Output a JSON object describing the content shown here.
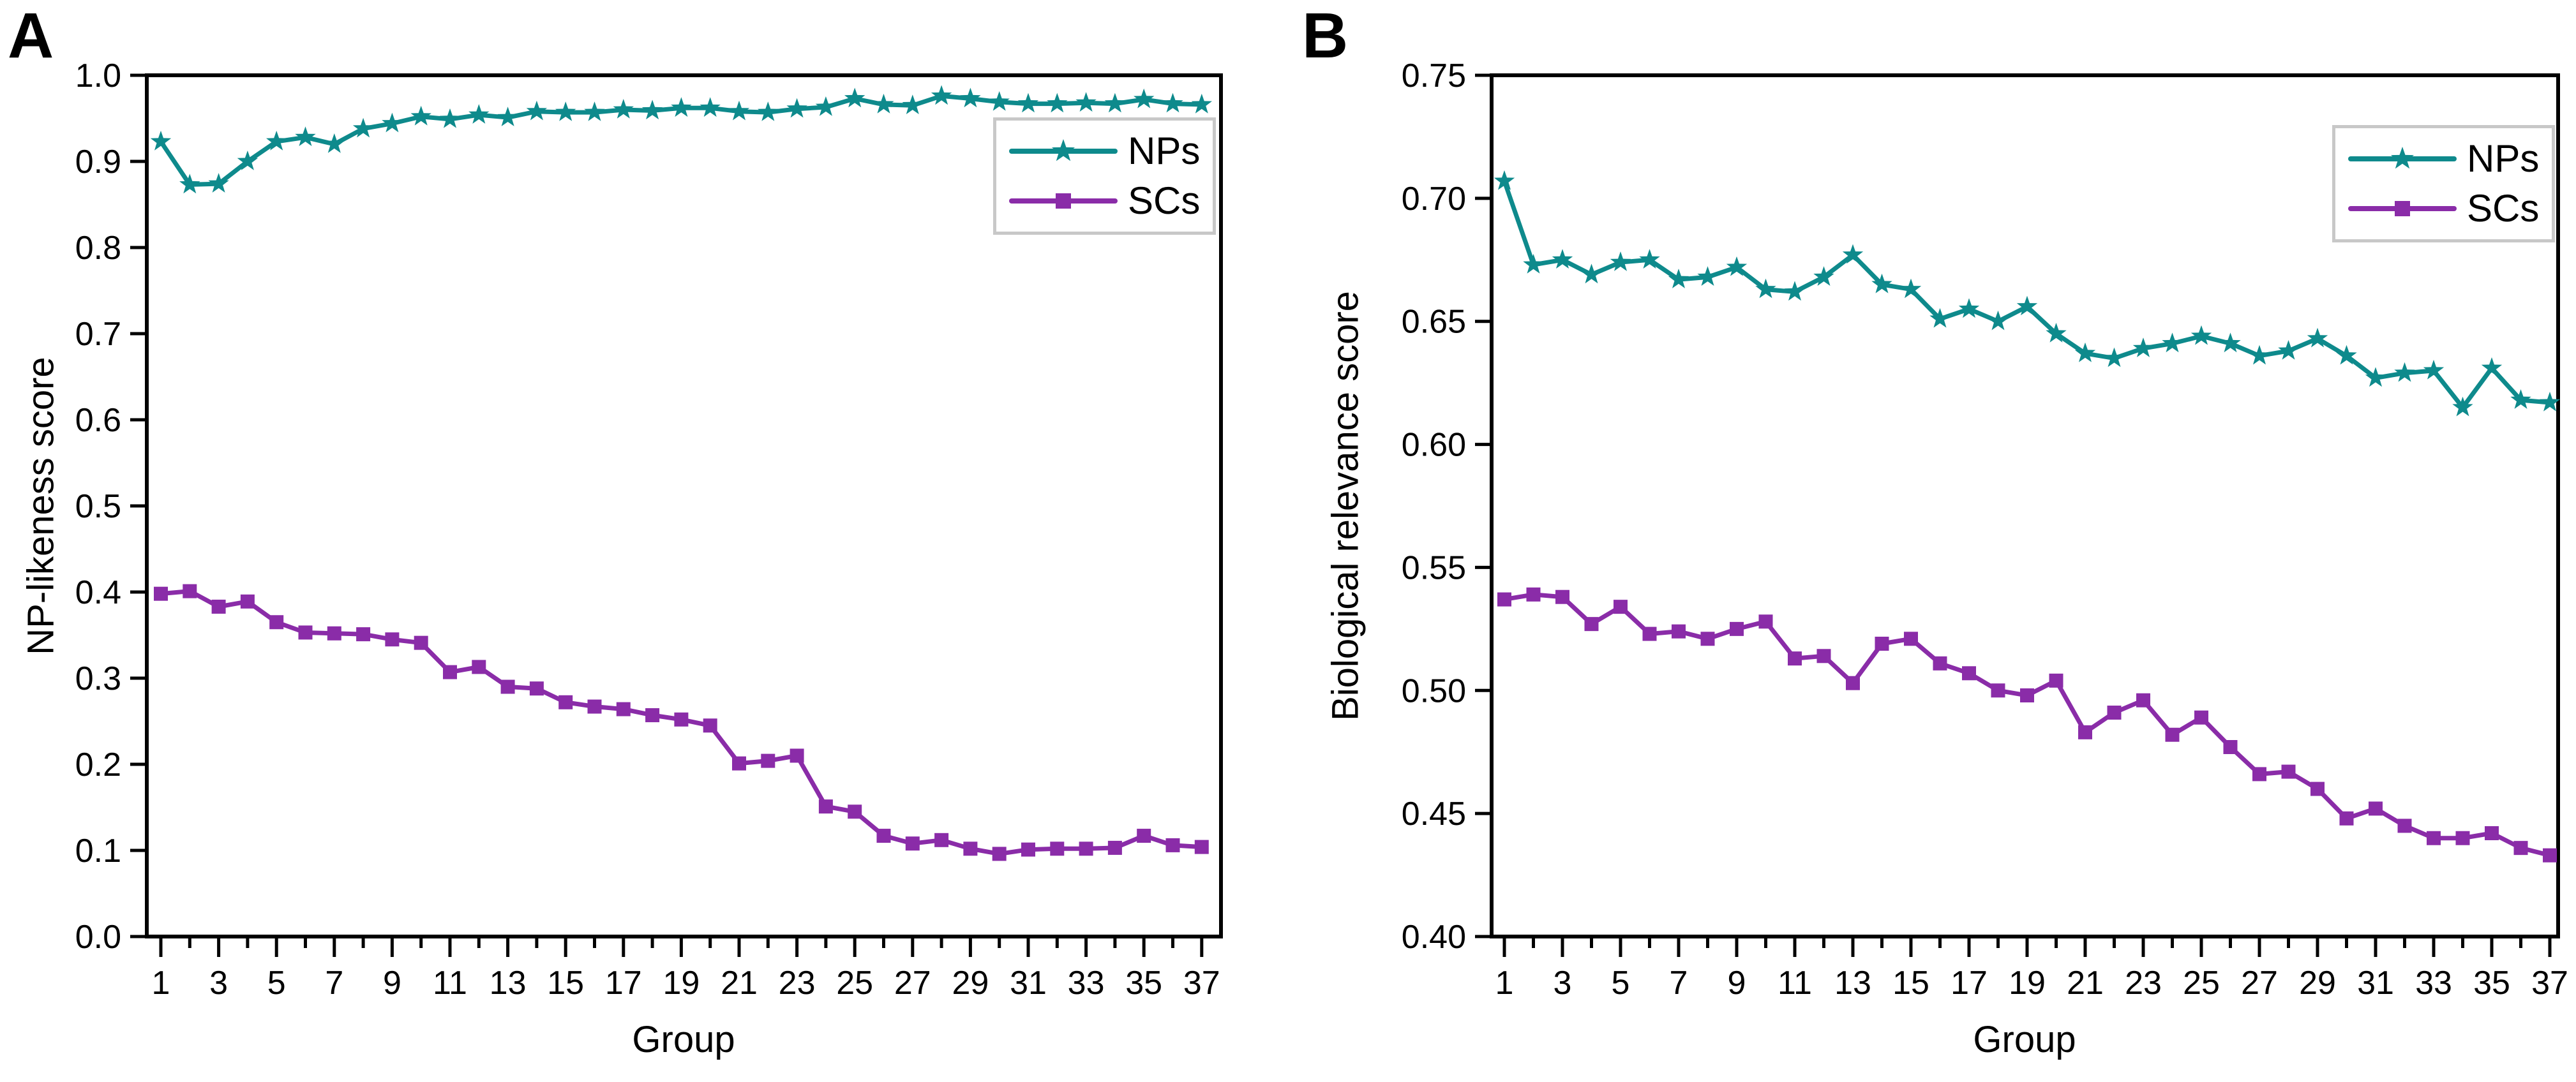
{
  "figure": {
    "panels": [
      {
        "letter": "A"
      },
      {
        "letter": "B"
      }
    ],
    "colors": {
      "nps_teal": "#0e8a8c",
      "scs_purple": "#8a2ca8",
      "axis_black": "#000000",
      "legend_border_gray": "#c8c8c8"
    }
  },
  "chart_data": [
    {
      "type": "line",
      "panel": "A",
      "title": "",
      "xlabel": "Group",
      "ylabel": "NP-likeness score",
      "grid": false,
      "legend_position": "top-right",
      "x": [
        1,
        2,
        3,
        4,
        5,
        6,
        7,
        8,
        9,
        10,
        11,
        12,
        13,
        14,
        15,
        16,
        17,
        18,
        19,
        20,
        21,
        22,
        23,
        24,
        25,
        26,
        27,
        28,
        29,
        30,
        31,
        32,
        33,
        34,
        35,
        36,
        37
      ],
      "xtick_labels": [
        "1",
        "3",
        "5",
        "7",
        "9",
        "11",
        "13",
        "15",
        "17",
        "19",
        "21",
        "23",
        "25",
        "27",
        "29",
        "31",
        "33",
        "35",
        "37"
      ],
      "ylim": [
        0.0,
        1.0
      ],
      "ytick_labels": [
        "1.0",
        "0.9",
        "0.8",
        "0.7",
        "0.6",
        "0.5",
        "0.4",
        "0.3",
        "0.2",
        "0.1",
        "0.0"
      ],
      "series": [
        {
          "name": "NPs",
          "color": "#0e8a8c",
          "marker": "star",
          "values": [
            0.923,
            0.873,
            0.874,
            0.9,
            0.923,
            0.928,
            0.92,
            0.938,
            0.944,
            0.952,
            0.949,
            0.954,
            0.951,
            0.958,
            0.957,
            0.957,
            0.96,
            0.959,
            0.962,
            0.962,
            0.958,
            0.957,
            0.961,
            0.963,
            0.973,
            0.966,
            0.965,
            0.976,
            0.973,
            0.969,
            0.967,
            0.967,
            0.968,
            0.967,
            0.972,
            0.967,
            0.966
          ]
        },
        {
          "name": "SCs",
          "color": "#8a2ca8",
          "marker": "square",
          "values": [
            0.398,
            0.401,
            0.383,
            0.389,
            0.365,
            0.353,
            0.352,
            0.351,
            0.345,
            0.341,
            0.307,
            0.313,
            0.29,
            0.288,
            0.272,
            0.267,
            0.264,
            0.257,
            0.252,
            0.245,
            0.201,
            0.204,
            0.21,
            0.151,
            0.145,
            0.117,
            0.108,
            0.112,
            0.102,
            0.096,
            0.101,
            0.102,
            0.102,
            0.103,
            0.117,
            0.106,
            0.104
          ]
        }
      ]
    },
    {
      "type": "line",
      "panel": "B",
      "title": "",
      "xlabel": "Group",
      "ylabel": "Biological relevance score",
      "grid": false,
      "legend_position": "top-right",
      "x": [
        1,
        2,
        3,
        4,
        5,
        6,
        7,
        8,
        9,
        10,
        11,
        12,
        13,
        14,
        15,
        16,
        17,
        18,
        19,
        20,
        21,
        22,
        23,
        24,
        25,
        26,
        27,
        28,
        29,
        30,
        31,
        32,
        33,
        34,
        35,
        36,
        37
      ],
      "xtick_labels": [
        "1",
        "3",
        "5",
        "7",
        "9",
        "11",
        "13",
        "15",
        "17",
        "19",
        "21",
        "23",
        "25",
        "27",
        "29",
        "31",
        "33",
        "35",
        "37"
      ],
      "ylim": [
        0.4,
        0.75
      ],
      "ytick_labels": [
        "0.75",
        "0.70",
        "0.65",
        "0.60",
        "0.55",
        "0.50",
        "0.45",
        "0.40"
      ],
      "series": [
        {
          "name": "NPs",
          "color": "#0e8a8c",
          "marker": "star",
          "values": [
            0.707,
            0.673,
            0.675,
            0.669,
            0.674,
            0.675,
            0.667,
            0.668,
            0.672,
            0.663,
            0.662,
            0.668,
            0.677,
            0.665,
            0.663,
            0.651,
            0.655,
            0.65,
            0.656,
            0.645,
            0.637,
            0.635,
            0.639,
            0.641,
            0.644,
            0.641,
            0.636,
            0.638,
            0.643,
            0.636,
            0.627,
            0.629,
            0.63,
            0.615,
            0.631,
            0.618,
            0.617
          ]
        },
        {
          "name": "SCs",
          "color": "#8a2ca8",
          "marker": "square",
          "values": [
            0.537,
            0.539,
            0.538,
            0.527,
            0.534,
            0.523,
            0.524,
            0.521,
            0.525,
            0.528,
            0.513,
            0.514,
            0.503,
            0.519,
            0.521,
            0.511,
            0.507,
            0.5,
            0.498,
            0.504,
            0.483,
            0.491,
            0.496,
            0.482,
            0.489,
            0.477,
            0.466,
            0.467,
            0.46,
            0.448,
            0.452,
            0.445,
            0.44,
            0.44,
            0.442,
            0.436,
            0.433
          ]
        }
      ]
    }
  ]
}
